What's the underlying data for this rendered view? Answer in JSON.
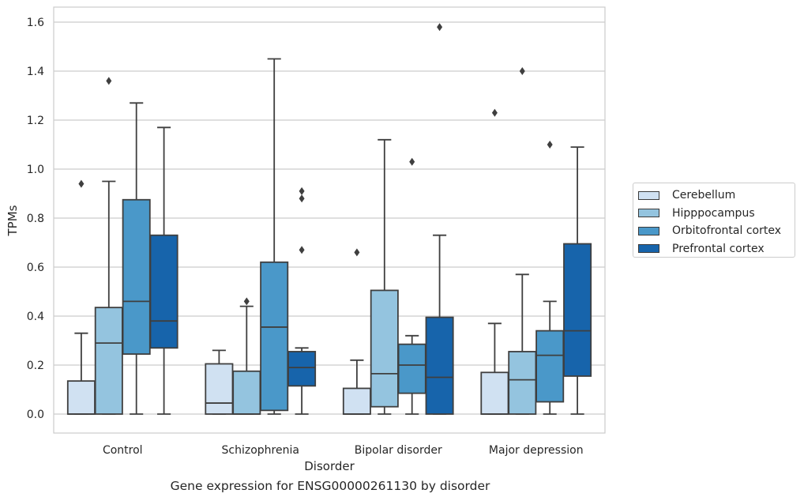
{
  "chart_data": {
    "type": "box",
    "caption": "Gene expression for ENSG00000261130 by disorder",
    "xlabel": "Disorder",
    "ylabel": "TPMs",
    "ylim": [
      -0.08,
      1.66
    ],
    "yticks": [
      "0.0",
      "0.2",
      "0.4",
      "0.6",
      "0.8",
      "1.0",
      "1.2",
      "1.4",
      "1.6"
    ],
    "categories": [
      "Control",
      "Schizophrenia",
      "Bipolar disorder",
      "Major depression"
    ],
    "grid": true,
    "legend_position": "right",
    "series": [
      {
        "name": "Cerebellum",
        "color": "#d0e1f2",
        "boxes": [
          {
            "min": 0.0,
            "q1": 0.0,
            "median": 0.0,
            "q3": 0.135,
            "max": 0.33,
            "outliers": [
              0.94
            ]
          },
          {
            "min": 0.0,
            "q1": 0.0,
            "median": 0.045,
            "q3": 0.205,
            "max": 0.26,
            "outliers": []
          },
          {
            "min": 0.0,
            "q1": 0.0,
            "median": 0.0,
            "q3": 0.105,
            "max": 0.22,
            "outliers": [
              0.66
            ]
          },
          {
            "min": 0.0,
            "q1": 0.0,
            "median": 0.0,
            "q3": 0.17,
            "max": 0.37,
            "outliers": [
              1.23
            ]
          }
        ]
      },
      {
        "name": "Hipppocampus",
        "color": "#94c4df",
        "boxes": [
          {
            "min": 0.0,
            "q1": 0.0,
            "median": 0.29,
            "q3": 0.435,
            "max": 0.95,
            "outliers": [
              1.36
            ]
          },
          {
            "min": 0.0,
            "q1": 0.0,
            "median": 0.0,
            "q3": 0.175,
            "max": 0.44,
            "outliers": [
              0.46
            ]
          },
          {
            "min": 0.0,
            "q1": 0.03,
            "median": 0.165,
            "q3": 0.505,
            "max": 1.12,
            "outliers": []
          },
          {
            "min": 0.0,
            "q1": 0.0,
            "median": 0.14,
            "q3": 0.255,
            "max": 0.57,
            "outliers": [
              1.4
            ]
          }
        ]
      },
      {
        "name": "Orbitofrontal cortex",
        "color": "#4a98c9",
        "boxes": [
          {
            "min": 0.0,
            "q1": 0.245,
            "median": 0.46,
            "q3": 0.875,
            "max": 1.27,
            "outliers": []
          },
          {
            "min": 0.0,
            "q1": 0.015,
            "median": 0.355,
            "q3": 0.62,
            "max": 1.45,
            "outliers": []
          },
          {
            "min": 0.0,
            "q1": 0.085,
            "median": 0.2,
            "q3": 0.285,
            "max": 0.32,
            "outliers": [
              1.03
            ]
          },
          {
            "min": 0.0,
            "q1": 0.05,
            "median": 0.24,
            "q3": 0.34,
            "max": 0.46,
            "outliers": [
              1.1
            ]
          }
        ]
      },
      {
        "name": "Prefrontal cortex",
        "color": "#1764ab",
        "boxes": [
          {
            "min": 0.0,
            "q1": 0.27,
            "median": 0.38,
            "q3": 0.73,
            "max": 1.17,
            "outliers": []
          },
          {
            "min": 0.0,
            "q1": 0.115,
            "median": 0.19,
            "q3": 0.255,
            "max": 0.27,
            "outliers": [
              0.67,
              0.88,
              0.91
            ]
          },
          {
            "min": 0.0,
            "q1": 0.0,
            "median": 0.15,
            "q3": 0.395,
            "max": 0.73,
            "outliers": [
              1.58
            ]
          },
          {
            "min": 0.0,
            "q1": 0.155,
            "median": 0.34,
            "q3": 0.695,
            "max": 1.09,
            "outliers": []
          }
        ]
      }
    ]
  }
}
